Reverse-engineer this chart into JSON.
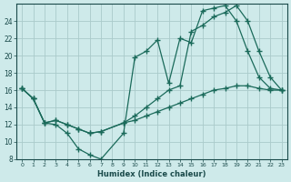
{
  "xlabel": "Humidex (Indice chaleur)",
  "background_color": "#ceeaea",
  "grid_color": "#aacaca",
  "line_color": "#1a6a5a",
  "xlim": [
    -0.5,
    23.5
  ],
  "ylim": [
    8,
    26
  ],
  "xticks": [
    0,
    1,
    2,
    3,
    4,
    5,
    6,
    7,
    8,
    9,
    10,
    11,
    12,
    13,
    14,
    15,
    16,
    17,
    18,
    19,
    20,
    21,
    22,
    23
  ],
  "yticks": [
    8,
    10,
    12,
    14,
    16,
    18,
    20,
    22,
    24
  ],
  "line1_x": [
    0,
    1,
    2,
    3,
    4,
    5,
    6,
    7,
    9,
    10,
    11,
    12,
    13,
    14,
    15,
    16,
    17,
    18,
    19,
    20,
    21,
    22,
    23
  ],
  "line1_y": [
    16.2,
    15.0,
    12.2,
    12.0,
    11.0,
    9.2,
    8.5,
    8.0,
    11.0,
    19.8,
    20.5,
    21.8,
    16.8,
    22.0,
    21.5,
    25.2,
    25.5,
    25.8,
    24.0,
    20.5,
    17.5,
    16.2,
    16.0
  ],
  "line2_x": [
    0,
    1,
    2,
    3,
    4,
    5,
    6,
    7,
    9,
    10,
    11,
    12,
    13,
    14,
    15,
    16,
    17,
    18,
    19,
    20,
    21,
    22,
    23
  ],
  "line2_y": [
    16.2,
    15.0,
    12.2,
    12.5,
    12.0,
    11.5,
    11.0,
    11.2,
    12.2,
    13.0,
    14.0,
    15.0,
    16.0,
    16.5,
    22.8,
    23.5,
    24.5,
    25.0,
    25.8,
    24.0,
    20.5,
    17.5,
    16.0
  ],
  "line3_x": [
    0,
    1,
    2,
    3,
    4,
    5,
    6,
    7,
    9,
    10,
    11,
    12,
    13,
    14,
    15,
    16,
    17,
    18,
    19,
    20,
    21,
    22,
    23
  ],
  "line3_y": [
    16.2,
    15.0,
    12.2,
    12.5,
    12.0,
    11.5,
    11.0,
    11.2,
    12.2,
    12.5,
    13.0,
    13.5,
    14.0,
    14.5,
    15.0,
    15.5,
    16.0,
    16.2,
    16.5,
    16.5,
    16.2,
    16.0,
    16.0
  ]
}
